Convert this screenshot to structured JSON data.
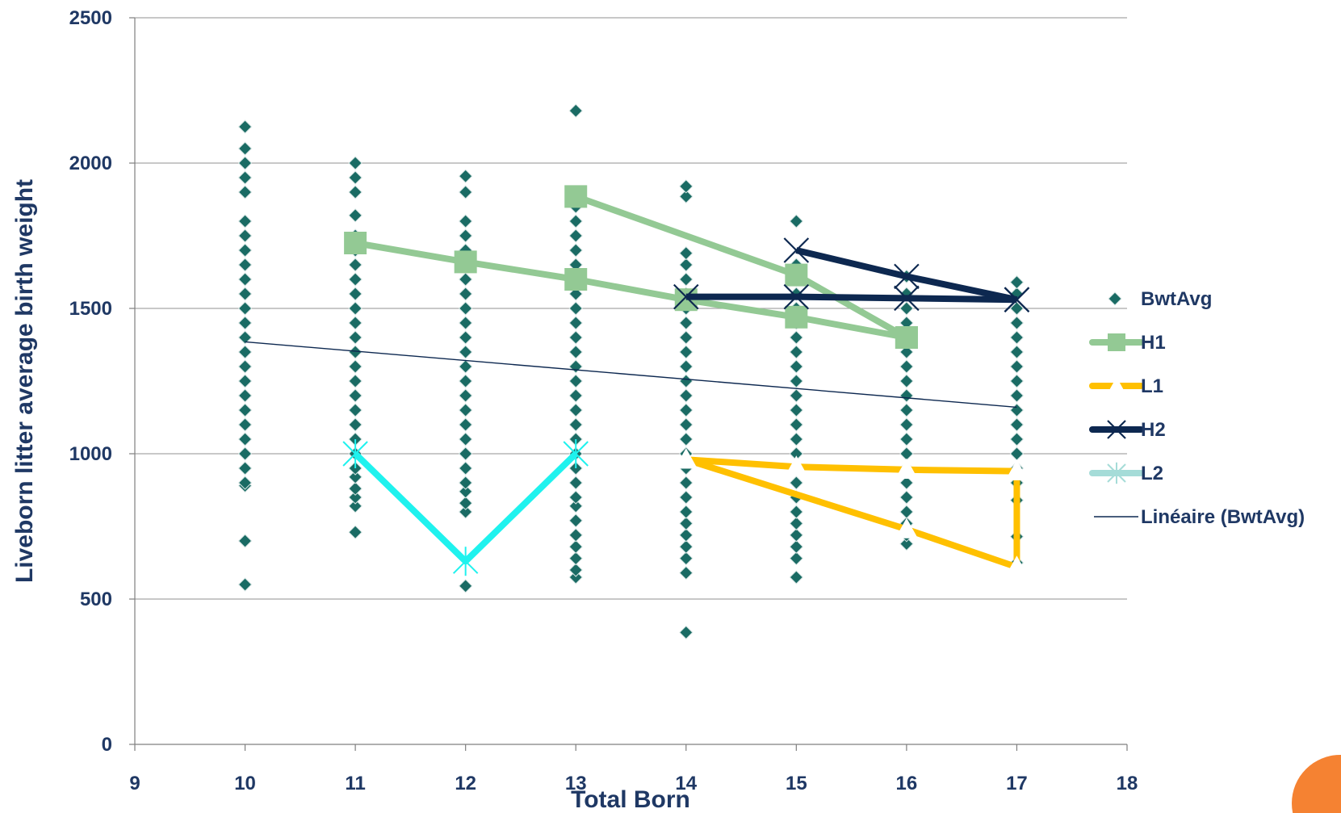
{
  "chart_data": {
    "type": "scatter",
    "xlabel": "Total Born",
    "ylabel": "Liveborn litter average birth weight",
    "xlim": [
      9,
      18
    ],
    "ylim": [
      0,
      2500
    ],
    "x_ticks": [
      "9",
      "10",
      "11",
      "12",
      "13",
      "14",
      "15",
      "16",
      "17",
      "18"
    ],
    "y_ticks": [
      "0",
      "500",
      "1000",
      "1500",
      "2000",
      "2500"
    ],
    "grid": "horizontal",
    "legend_position": "right",
    "scatter": {
      "name": "BwtAvg",
      "color": "#1a6b64",
      "columns": [
        {
          "x": 10,
          "y": [
            550,
            700,
            890,
            900,
            950,
            1000,
            1050,
            1100,
            1150,
            1200,
            1250,
            1300,
            1350,
            1400,
            1450,
            1500,
            1550,
            1600,
            1650,
            1700,
            1750,
            1800,
            1900,
            1950,
            2000,
            2050,
            2125
          ]
        },
        {
          "x": 11,
          "y": [
            730,
            820,
            850,
            880,
            920,
            950,
            1000,
            1050,
            1100,
            1150,
            1200,
            1250,
            1300,
            1350,
            1400,
            1450,
            1500,
            1550,
            1600,
            1650,
            1700,
            1750,
            1820,
            1900,
            1950,
            2000
          ]
        },
        {
          "x": 12,
          "y": [
            545,
            800,
            830,
            870,
            900,
            950,
            1000,
            1050,
            1100,
            1150,
            1200,
            1250,
            1300,
            1350,
            1400,
            1450,
            1500,
            1550,
            1600,
            1650,
            1700,
            1750,
            1800,
            1900,
            1955
          ]
        },
        {
          "x": 13,
          "y": [
            575,
            600,
            640,
            680,
            720,
            770,
            820,
            850,
            900,
            950,
            1000,
            1050,
            1100,
            1150,
            1200,
            1250,
            1300,
            1350,
            1400,
            1450,
            1500,
            1550,
            1600,
            1650,
            1700,
            1750,
            1800,
            1850,
            1900,
            2180
          ]
        },
        {
          "x": 14,
          "y": [
            385,
            590,
            640,
            680,
            720,
            760,
            800,
            850,
            900,
            950,
            1000,
            1050,
            1100,
            1150,
            1200,
            1250,
            1300,
            1350,
            1400,
            1450,
            1500,
            1550,
            1600,
            1650,
            1690,
            1885,
            1920
          ]
        },
        {
          "x": 15,
          "y": [
            575,
            640,
            680,
            720,
            760,
            800,
            850,
            900,
            950,
            1000,
            1050,
            1100,
            1150,
            1200,
            1250,
            1300,
            1350,
            1400,
            1450,
            1500,
            1550,
            1600,
            1650,
            1800
          ]
        },
        {
          "x": 16,
          "y": [
            690,
            720,
            760,
            800,
            850,
            900,
            950,
            1000,
            1050,
            1100,
            1150,
            1200,
            1250,
            1300,
            1350,
            1400,
            1450,
            1500,
            1550,
            1610
          ]
        },
        {
          "x": 17,
          "y": [
            625,
            715,
            840,
            900,
            950,
            1000,
            1050,
            1100,
            1150,
            1200,
            1250,
            1300,
            1350,
            1400,
            1450,
            1500,
            1550,
            1590
          ]
        }
      ]
    },
    "series": [
      {
        "name": "H1",
        "color": "#93c994",
        "marker": "square",
        "segments": [
          [
            [
              11,
              1725
            ],
            [
              12,
              1660
            ],
            [
              13,
              1600
            ],
            [
              14,
              1530
            ],
            [
              15,
              1470
            ],
            [
              16,
              1400
            ]
          ],
          [
            [
              13,
              1885
            ],
            [
              15,
              1615
            ],
            [
              16,
              1400
            ]
          ]
        ]
      },
      {
        "name": "L1",
        "color": "#ffc000",
        "marker": "triangle",
        "segments": [
          [
            [
              14,
              980
            ],
            [
              15,
              955
            ],
            [
              16,
              945
            ],
            [
              17,
              940
            ]
          ],
          [
            [
              14,
              980
            ],
            [
              16,
              740
            ],
            [
              17,
              610
            ]
          ],
          [
            [
              17,
              940
            ],
            [
              17,
              610
            ]
          ]
        ]
      },
      {
        "name": "H2",
        "color": "#0d2850",
        "marker": "x",
        "segments": [
          [
            [
              14,
              1540
            ],
            [
              15,
              1540
            ],
            [
              16,
              1535
            ],
            [
              17,
              1530
            ]
          ],
          [
            [
              15,
              1700
            ],
            [
              16,
              1610
            ],
            [
              17,
              1530
            ]
          ]
        ]
      },
      {
        "name": "L2",
        "color": "#1ff2ee",
        "legend_color": "#a5dcd8",
        "marker": "star",
        "segments": [
          [
            [
              11,
              1000
            ],
            [
              12,
              630
            ],
            [
              13,
              1000
            ]
          ]
        ]
      }
    ],
    "trendline": {
      "name": "Linéaire (BwtAvg)",
      "color": "#0d2850",
      "from": [
        10,
        1385
      ],
      "to": [
        17,
        1160
      ]
    }
  },
  "decoration": {
    "corner_circle_color": "#f58232"
  }
}
